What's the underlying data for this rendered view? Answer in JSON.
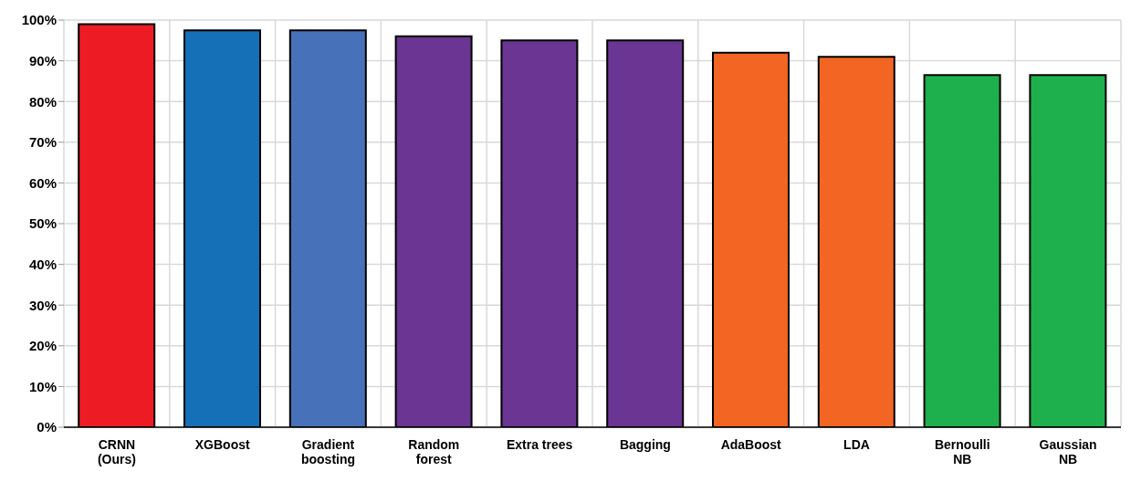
{
  "chart_data": {
    "type": "bar",
    "categories": [
      "CRNN (Ours)",
      "XGBoost",
      "Gradient boosting",
      "Random forest",
      "Extra trees",
      "Bagging",
      "AdaBoost",
      "LDA",
      "Bernoulli NB",
      "Gaussian NB"
    ],
    "values": [
      99,
      97.5,
      97.5,
      96,
      95,
      95,
      92,
      91,
      86.5,
      86.5
    ],
    "colors": [
      "#ed1c24",
      "#1570b8",
      "#4771b8",
      "#6b3593",
      "#6b3593",
      "#6b3593",
      "#f26522",
      "#f26522",
      "#1eb04c",
      "#1eb04c"
    ],
    "ylim": [
      0,
      100
    ],
    "yticks": [
      {
        "value": 0,
        "label": "0%"
      },
      {
        "value": 10,
        "label": "10%"
      },
      {
        "value": 20,
        "label": "20%"
      },
      {
        "value": 30,
        "label": "30%"
      },
      {
        "value": 40,
        "label": "40%"
      },
      {
        "value": 50,
        "label": "50%"
      },
      {
        "value": 60,
        "label": "60%"
      },
      {
        "value": 70,
        "label": "70%"
      },
      {
        "value": 80,
        "label": "80%"
      },
      {
        "value": 90,
        "label": "90%"
      },
      {
        "value": 100,
        "label": "100%"
      }
    ],
    "grid": true
  }
}
